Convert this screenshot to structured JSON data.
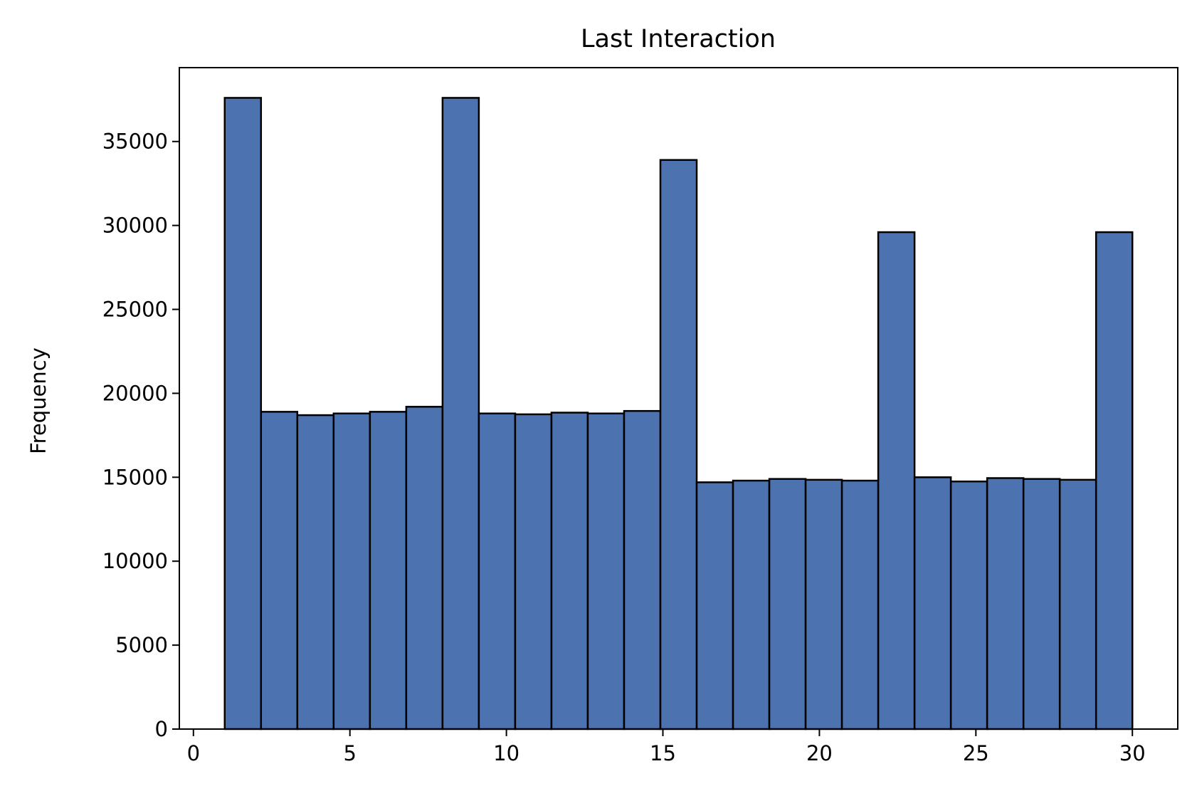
{
  "chart_data": {
    "type": "bar",
    "histogram": true,
    "title": "Last Interaction",
    "xlabel": "",
    "ylabel": "Frequency",
    "xlim": [
      -0.45,
      31.45
    ],
    "ylim": [
      0,
      39400
    ],
    "xticks": [
      0,
      5,
      10,
      15,
      20,
      25,
      30
    ],
    "yticks": [
      0,
      5000,
      10000,
      15000,
      20000,
      25000,
      30000,
      35000
    ],
    "grid": false,
    "bin_edges": [
      1.0,
      2.16,
      3.32,
      4.48,
      5.64,
      6.8,
      7.96,
      9.12,
      10.28,
      11.44,
      12.6,
      13.76,
      14.92,
      16.08,
      17.24,
      18.4,
      19.56,
      20.72,
      21.88,
      23.04,
      24.2,
      25.36,
      26.52,
      27.68,
      28.84,
      30.0
    ],
    "series": [
      {
        "values": [
          37600,
          18900,
          18700,
          18800,
          18900,
          19200,
          37600,
          18800,
          18750,
          18850,
          18800,
          18950,
          33900,
          14700,
          14800,
          14900,
          14850,
          14800,
          29600,
          15000,
          14750,
          14950,
          14900,
          14850,
          29600
        ]
      }
    ],
    "colors": {
      "bar_fill": "#4c72b0",
      "bar_edge": "#000000"
    }
  }
}
